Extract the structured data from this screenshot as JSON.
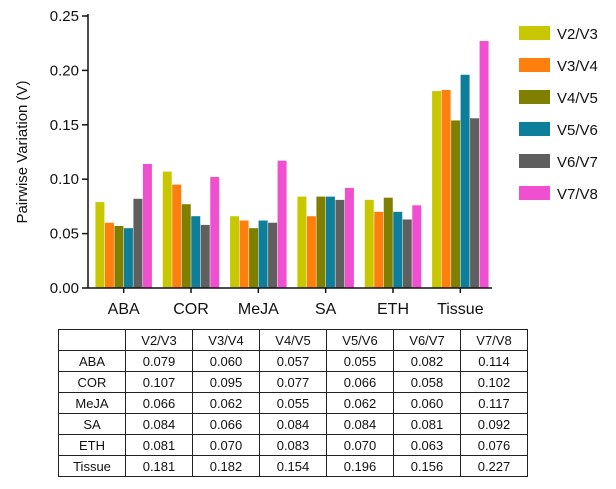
{
  "chart_data": {
    "type": "bar",
    "ylabel": "Pairwise Variation (V)",
    "xlabel": "",
    "ylim": [
      0,
      0.25
    ],
    "yticks": [
      "0.00",
      "0.05",
      "0.10",
      "0.15",
      "0.20",
      "0.25"
    ],
    "grid": false,
    "legend_position": "right",
    "categories": [
      "ABA",
      "COR",
      "MeJA",
      "SA",
      "ETH",
      "Tissue"
    ],
    "series": [
      {
        "name": "V2/V3",
        "color": "#c9c800",
        "values": [
          0.079,
          0.107,
          0.066,
          0.084,
          0.081,
          0.181
        ]
      },
      {
        "name": "V3/V4",
        "color": "#ff7f0e",
        "values": [
          0.06,
          0.095,
          0.062,
          0.066,
          0.07,
          0.182
        ]
      },
      {
        "name": "V4/V5",
        "color": "#7f7f00",
        "values": [
          0.057,
          0.077,
          0.055,
          0.084,
          0.083,
          0.154
        ]
      },
      {
        "name": "V5/V6",
        "color": "#0e7f9a",
        "values": [
          0.055,
          0.066,
          0.062,
          0.084,
          0.07,
          0.196
        ]
      },
      {
        "name": "V6/V7",
        "color": "#5f5f5f",
        "values": [
          0.082,
          0.058,
          0.06,
          0.081,
          0.063,
          0.156
        ]
      },
      {
        "name": "V7/V8",
        "color": "#f04fd0",
        "values": [
          0.114,
          0.102,
          0.117,
          0.092,
          0.076,
          0.227
        ]
      }
    ]
  },
  "table": {
    "headers": [
      "V2/V3",
      "V3/V4",
      "V4/V5",
      "V5/V6",
      "V6/V7",
      "V7/V8"
    ],
    "rows": [
      {
        "label": "ABA",
        "values": [
          "0.079",
          "0.060",
          "0.057",
          "0.055",
          "0.082",
          "0.114"
        ]
      },
      {
        "label": "COR",
        "values": [
          "0.107",
          "0.095",
          "0.077",
          "0.066",
          "0.058",
          "0.102"
        ]
      },
      {
        "label": "MeJA",
        "values": [
          "0.066",
          "0.062",
          "0.055",
          "0.062",
          "0.060",
          "0.117"
        ]
      },
      {
        "label": "SA",
        "values": [
          "0.084",
          "0.066",
          "0.084",
          "0.084",
          "0.081",
          "0.092"
        ]
      },
      {
        "label": "ETH",
        "values": [
          "0.081",
          "0.070",
          "0.083",
          "0.070",
          "0.063",
          "0.076"
        ]
      },
      {
        "label": "Tissue",
        "values": [
          "0.181",
          "0.182",
          "0.154",
          "0.196",
          "0.156",
          "0.227"
        ]
      }
    ]
  }
}
